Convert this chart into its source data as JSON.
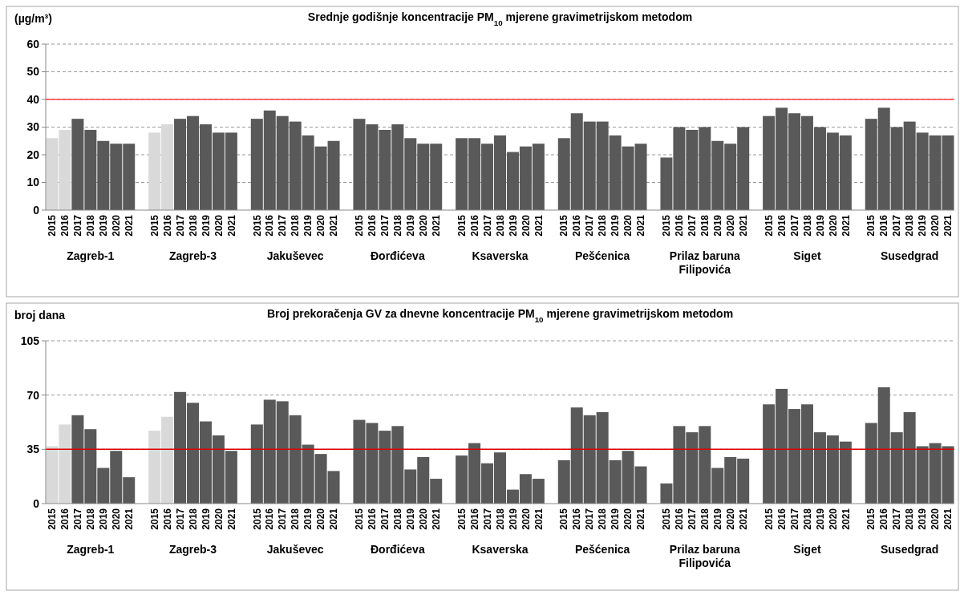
{
  "chart_data": [
    {
      "type": "bar",
      "title": "Srednje godišnje koncentracije PM$_{10}$ mjerene gravimetrijskom metodom",
      "ylabel": "(µg/m³)",
      "categories": [
        "2015",
        "2016",
        "2017",
        "2018",
        "2019",
        "2020",
        "2021",
        null,
        "2015",
        "2016",
        "2017",
        "2018",
        "2019",
        "2020",
        "2021",
        null,
        "2015",
        "2016",
        "2017",
        "2018",
        "2019",
        "2020",
        "2021",
        null,
        "2015",
        "2016",
        "2017",
        "2018",
        "2019",
        "2020",
        "2021",
        null,
        "2015",
        "2016",
        "2017",
        "2018",
        "2019",
        "2020",
        "2021",
        null,
        "2015",
        "2016",
        "2017",
        "2018",
        "2019",
        "2020",
        "2021",
        null,
        "2015",
        "2016",
        "2017",
        "2018",
        "2019",
        "2020",
        "2021",
        null,
        "2015",
        "2016",
        "2017",
        "2018",
        "2019",
        "2020",
        "2021",
        null,
        "2015",
        "2016",
        "2017",
        "2018",
        "2019",
        "2020",
        "2021"
      ],
      "values": [
        26,
        29,
        33,
        29,
        25,
        24,
        24,
        null,
        28,
        31,
        33,
        34,
        31,
        28,
        28,
        null,
        33,
        36,
        34,
        32,
        27,
        23,
        25,
        null,
        33,
        31,
        29,
        31,
        26,
        24,
        24,
        null,
        26,
        26,
        24,
        27,
        21,
        23,
        24,
        null,
        26,
        35,
        32,
        32,
        27,
        23,
        24,
        null,
        19,
        30,
        29,
        30,
        25,
        24,
        30,
        null,
        34,
        37,
        35,
        34,
        30,
        28,
        27,
        null,
        33,
        37,
        30,
        32,
        28,
        27,
        27
      ],
      "colors": [
        "#d9d9d9",
        "#d9d9d9",
        "#595959",
        "#595959",
        "#595959",
        "#595959",
        "#595959",
        null,
        "#d9d9d9",
        "#d9d9d9",
        "#595959",
        "#595959",
        "#595959",
        "#595959",
        "#595959",
        null,
        "#595959",
        "#595959",
        "#595959",
        "#595959",
        "#595959",
        "#595959",
        "#595959",
        null,
        "#595959",
        "#595959",
        "#595959",
        "#595959",
        "#595959",
        "#595959",
        "#595959",
        null,
        "#595959",
        "#595959",
        "#595959",
        "#595959",
        "#595959",
        "#595959",
        "#595959",
        null,
        "#595959",
        "#595959",
        "#595959",
        "#595959",
        "#595959",
        "#595959",
        "#595959",
        null,
        "#595959",
        "#595959",
        "#595959",
        "#595959",
        "#595959",
        "#595959",
        "#595959",
        null,
        "#595959",
        "#595959",
        "#595959",
        "#595959",
        "#595959",
        "#595959",
        "#595959",
        null,
        "#595959",
        "#595959",
        "#595959",
        "#595959",
        "#595959",
        "#595959",
        "#595959"
      ],
      "ylim": [
        0,
        60
      ],
      "yticks": [
        0,
        10,
        20,
        30,
        40,
        50,
        60
      ],
      "grid": "y",
      "ref_lines": [
        {
          "axis": "y",
          "value": 40,
          "color": "#ff4040"
        }
      ],
      "annotations": [
        "Zagreb-1",
        "Zagreb-3",
        "Jakuševec",
        "Đorđićeva",
        "Ksaverska",
        "Pešćenica",
        "Prilaz baruna Filipovića",
        "Siget",
        "Susedgrad"
      ]
    },
    {
      "type": "bar",
      "title": "Broj prekoračenja GV za dnevne koncentracije PM$_{10}$ mjerene gravimetrijskom metodom",
      "ylabel": "broj dana",
      "categories": [
        "2015",
        "2016",
        "2017",
        "2018",
        "2019",
        "2020",
        "2021",
        null,
        "2015",
        "2016",
        "2017",
        "2018",
        "2019",
        "2020",
        "2021",
        null,
        "2015",
        "2016",
        "2017",
        "2018",
        "2019",
        "2020",
        "2021",
        null,
        "2015",
        "2016",
        "2017",
        "2018",
        "2019",
        "2020",
        "2021",
        null,
        "2015",
        "2016",
        "2017",
        "2018",
        "2019",
        "2020",
        "2021",
        null,
        "2015",
        "2016",
        "2017",
        "2018",
        "2019",
        "2020",
        "2021",
        null,
        "2015",
        "2016",
        "2017",
        "2018",
        "2019",
        "2020",
        "2021",
        null,
        "2015",
        "2016",
        "2017",
        "2018",
        "2019",
        "2020",
        "2021",
        null,
        "2015",
        "2016",
        "2017",
        "2018",
        "2019",
        "2020",
        "2021"
      ],
      "values": [
        37,
        51,
        57,
        48,
        23,
        34,
        17,
        null,
        47,
        56,
        72,
        65,
        53,
        44,
        34,
        null,
        51,
        67,
        66,
        57,
        38,
        32,
        21,
        null,
        54,
        52,
        47,
        50,
        22,
        30,
        16,
        null,
        31,
        39,
        26,
        33,
        9,
        19,
        16,
        null,
        28,
        62,
        57,
        59,
        28,
        34,
        24,
        null,
        13,
        50,
        46,
        50,
        23,
        30,
        29,
        null,
        64,
        74,
        61,
        64,
        46,
        44,
        40,
        null,
        52,
        75,
        46,
        59,
        37,
        39,
        37
      ],
      "colors": [
        "#d9d9d9",
        "#d9d9d9",
        "#595959",
        "#595959",
        "#595959",
        "#595959",
        "#595959",
        null,
        "#d9d9d9",
        "#d9d9d9",
        "#595959",
        "#595959",
        "#595959",
        "#595959",
        "#595959",
        null,
        "#595959",
        "#595959",
        "#595959",
        "#595959",
        "#595959",
        "#595959",
        "#595959",
        null,
        "#595959",
        "#595959",
        "#595959",
        "#595959",
        "#595959",
        "#595959",
        "#595959",
        null,
        "#595959",
        "#595959",
        "#595959",
        "#595959",
        "#595959",
        "#595959",
        "#595959",
        null,
        "#595959",
        "#595959",
        "#595959",
        "#595959",
        "#595959",
        "#595959",
        "#595959",
        null,
        "#595959",
        "#595959",
        "#595959",
        "#595959",
        "#595959",
        "#595959",
        "#595959",
        null,
        "#595959",
        "#595959",
        "#595959",
        "#595959",
        "#595959",
        "#595959",
        "#595959",
        null,
        "#595959",
        "#595959",
        "#595959",
        "#595959",
        "#595959",
        "#595959",
        "#595959"
      ],
      "ylim": [
        0,
        105
      ],
      "yticks": [
        0,
        35,
        70,
        105
      ],
      "grid": "y",
      "ref_lines": [
        {
          "axis": "y",
          "value": 35,
          "color": "#e00000"
        }
      ],
      "annotations": [
        "Zagreb-1",
        "Zagreb-3",
        "Jakuševec",
        "Đorđićeva",
        "Ksaverska",
        "Pešćenica",
        "Prilaz baruna Filipovića",
        "Siget",
        "Susedgrad"
      ]
    }
  ]
}
